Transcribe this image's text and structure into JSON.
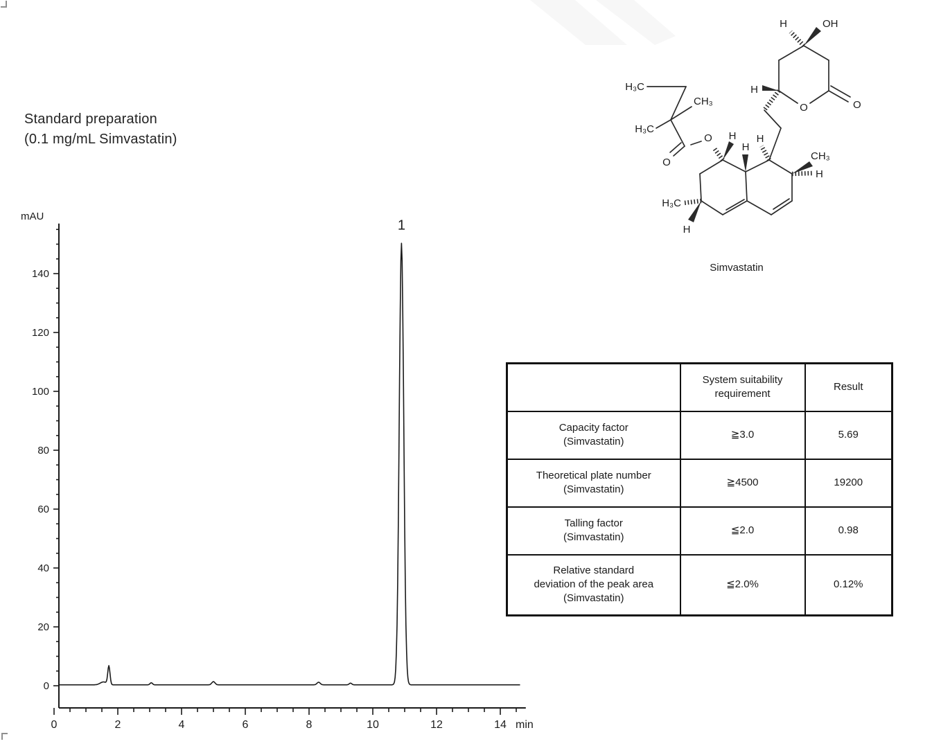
{
  "page": {
    "title": "Standard preparation\n(0.1 mg/mL Simvastatin)"
  },
  "chart_data": {
    "type": "line",
    "title": "Standard preparation (0.1 mg/mL Simvastatin)",
    "xlabel": "min",
    "ylabel": "mAU",
    "xlim": [
      0,
      14.8
    ],
    "ylim": [
      0,
      157
    ],
    "x_ticks_major": [
      0,
      2,
      4,
      6,
      8,
      10,
      12,
      14
    ],
    "x_minor_step": 0.5,
    "y_ticks_major": [
      0,
      20,
      40,
      60,
      80,
      100,
      120,
      140
    ],
    "y_minor_step": 5,
    "grid": false,
    "legend": "none",
    "baseline_mAU": 0.3,
    "peaks": [
      {
        "t_min": 1.55,
        "height_mAU": 1.0,
        "sigma_min": 0.1,
        "label": ""
      },
      {
        "t_min": 1.72,
        "height_mAU": 6.3,
        "sigma_min": 0.035,
        "label": ""
      },
      {
        "t_min": 3.05,
        "height_mAU": 0.7,
        "sigma_min": 0.04,
        "label": ""
      },
      {
        "t_min": 5.0,
        "height_mAU": 1.1,
        "sigma_min": 0.05,
        "label": ""
      },
      {
        "t_min": 8.3,
        "height_mAU": 0.9,
        "sigma_min": 0.05,
        "label": ""
      },
      {
        "t_min": 9.3,
        "height_mAU": 0.6,
        "sigma_min": 0.04,
        "label": ""
      },
      {
        "t_min": 10.9,
        "height_mAU": 150,
        "sigma_min": 0.07,
        "label": "1"
      }
    ]
  },
  "structure": {
    "caption": "Simvastatin",
    "labels": {
      "h_top": "H",
      "oh": "OH",
      "o_ring": "O",
      "o_lactone_carbonyl": "O",
      "h_c6_lactone": "H",
      "h3c_ethyl": "H₃C",
      "ch3_quat": "CH₃",
      "h3c_quat": "H₃C",
      "o_ester_carbonyl": "O",
      "o_ester": "O",
      "h_c8": "H",
      "h_c8a": "H",
      "h_c1": "H",
      "ch3_c7": "CH₃",
      "h_c7": "H",
      "h3c_c3": "H₃C",
      "h_c3": "H"
    }
  },
  "table": {
    "headers": [
      "",
      "System suitability\nrequirement",
      "Result"
    ],
    "rows": [
      {
        "parameter": "Capacity factor\n(Simvastatin)",
        "requirement": "≧3.0",
        "result": "5.69"
      },
      {
        "parameter": "Theoretical plate number\n(Simvastatin)",
        "requirement": "≧4500",
        "result": "19200"
      },
      {
        "parameter": "Talling factor\n(Simvastatin)",
        "requirement": "≦2.0",
        "result": "0.98"
      },
      {
        "parameter": "Relative standard\ndeviation of the peak area\n(Simvastatin)",
        "requirement": "≦2.0%",
        "result": "0.12%"
      }
    ]
  }
}
